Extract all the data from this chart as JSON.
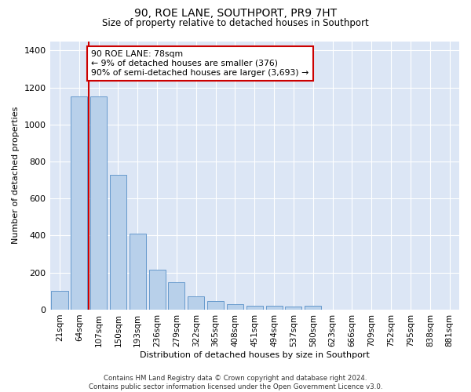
{
  "title": "90, ROE LANE, SOUTHPORT, PR9 7HT",
  "subtitle": "Size of property relative to detached houses in Southport",
  "xlabel": "Distribution of detached houses by size in Southport",
  "ylabel": "Number of detached properties",
  "categories": [
    "21sqm",
    "64sqm",
    "107sqm",
    "150sqm",
    "193sqm",
    "236sqm",
    "279sqm",
    "322sqm",
    "365sqm",
    "408sqm",
    "451sqm",
    "494sqm",
    "537sqm",
    "580sqm",
    "623sqm",
    "666sqm",
    "709sqm",
    "752sqm",
    "795sqm",
    "838sqm",
    "881sqm"
  ],
  "bar_values": [
    100,
    1150,
    1150,
    730,
    410,
    215,
    150,
    70,
    48,
    30,
    20,
    20,
    15,
    20,
    0,
    0,
    0,
    0,
    0,
    0,
    0
  ],
  "bar_color": "#b8d0ea",
  "bar_edge_color": "#6699cc",
  "vline_color": "#cc0000",
  "vline_x": 1.48,
  "annotation_text": "90 ROE LANE: 78sqm\n← 9% of detached houses are smaller (376)\n90% of semi-detached houses are larger (3,693) →",
  "annotation_box_facecolor": "#ffffff",
  "annotation_box_edgecolor": "#cc0000",
  "ylim": [
    0,
    1450
  ],
  "yticks": [
    0,
    200,
    400,
    600,
    800,
    1000,
    1200,
    1400
  ],
  "plot_bg_color": "#dce6f5",
  "grid_color": "#ffffff",
  "footer": "Contains HM Land Registry data © Crown copyright and database right 2024.\nContains public sector information licensed under the Open Government Licence v3.0."
}
